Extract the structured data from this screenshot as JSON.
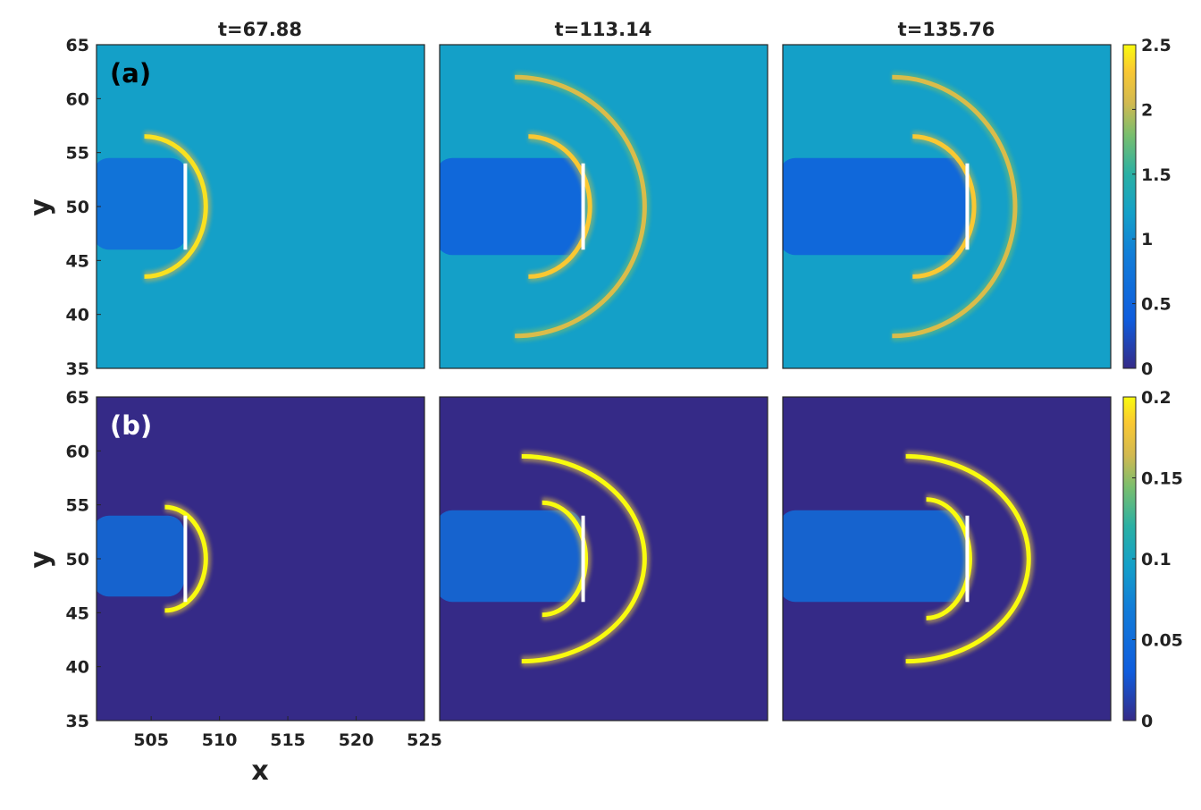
{
  "chart_data": [
    {
      "type": "heatmap",
      "row_label": "(a)",
      "xlabel": "",
      "ylabel": "y",
      "xlim": [
        501,
        525
      ],
      "ylim": [
        35,
        65
      ],
      "yticks": [
        35,
        40,
        45,
        50,
        55,
        60,
        65
      ],
      "panel_titles": [
        "t=67.88",
        "t=113.14",
        "t=135.76"
      ],
      "colorbar": {
        "min": 0,
        "max": 2.5,
        "ticks": [
          "0",
          "0.5",
          "1",
          "1.5",
          "2",
          "2.5"
        ],
        "tick_values": [
          0,
          0.5,
          1,
          1.5,
          2,
          2.5
        ]
      },
      "background_value": 1.2,
      "panels": [
        {
          "title": "t=67.88",
          "bar": {
            "x": 507.5,
            "y0": 46,
            "y1": 54
          },
          "fronts": [
            {
              "xc": 504.5,
              "a": 4.5,
              "b": 6.5,
              "value": 2.4
            }
          ],
          "cavity": {
            "x0": 501,
            "x1": 507.6,
            "y0": 46,
            "y1": 54.5,
            "value": 0.6
          }
        },
        {
          "title": "t=113.14",
          "bar": {
            "x": 511.5,
            "y0": 46,
            "y1": 54
          },
          "fronts": [
            {
              "xc": 507.5,
              "a": 4.5,
              "b": 6.5,
              "value": 2.3
            },
            {
              "xc": 506.5,
              "a": 9.5,
              "b": 12.0,
              "value": 2.1
            }
          ],
          "cavity": {
            "x0": 501,
            "x1": 511.6,
            "y0": 45.5,
            "y1": 54.5,
            "value": 0.4
          }
        },
        {
          "title": "t=135.76",
          "bar": {
            "x": 514.5,
            "y0": 46,
            "y1": 54
          },
          "fronts": [
            {
              "xc": 510.5,
              "a": 4.5,
              "b": 6.5,
              "value": 2.3
            },
            {
              "xc": 509.0,
              "a": 9.0,
              "b": 12.0,
              "value": 2.1
            }
          ],
          "cavity": {
            "x0": 501,
            "x1": 514.6,
            "y0": 45.5,
            "y1": 54.5,
            "value": 0.4
          }
        }
      ]
    },
    {
      "type": "heatmap",
      "row_label": "(b)",
      "xlabel": "x",
      "ylabel": "y",
      "xlim": [
        501,
        525
      ],
      "ylim": [
        35,
        65
      ],
      "xticks": [
        505,
        510,
        515,
        520,
        525
      ],
      "yticks": [
        35,
        40,
        45,
        50,
        55,
        60,
        65
      ],
      "colorbar": {
        "min": 0,
        "max": 0.2,
        "ticks": [
          "0",
          "0.05",
          "0.1",
          "0.15",
          "0.2"
        ],
        "tick_values": [
          0,
          0.05,
          0.1,
          0.15,
          0.2
        ]
      },
      "background_value": 0.0,
      "panels": [
        {
          "bar": {
            "x": 507.5,
            "y0": 46,
            "y1": 54
          },
          "fronts": [
            {
              "xc": 506.0,
              "a": 3.0,
              "b": 4.8,
              "value": 0.2
            }
          ],
          "cavity": {
            "x0": 501,
            "x1": 507.4,
            "y0": 46.5,
            "y1": 54.0,
            "value": 0.05
          }
        },
        {
          "bar": {
            "x": 511.5,
            "y0": 46,
            "y1": 54
          },
          "fronts": [
            {
              "xc": 508.5,
              "a": 3.2,
              "b": 5.2,
              "value": 0.2
            },
            {
              "xc": 507.0,
              "a": 9.0,
              "b": 9.5,
              "value": 0.2
            }
          ],
          "cavity": {
            "x0": 501,
            "x1": 511.4,
            "y0": 46.0,
            "y1": 54.5,
            "value": 0.05
          }
        },
        {
          "bar": {
            "x": 514.5,
            "y0": 46,
            "y1": 54
          },
          "fronts": [
            {
              "xc": 511.5,
              "a": 3.2,
              "b": 5.5,
              "value": 0.2
            },
            {
              "xc": 510.0,
              "a": 9.0,
              "b": 9.5,
              "value": 0.2
            }
          ],
          "cavity": {
            "x0": 501,
            "x1": 514.4,
            "y0": 46.0,
            "y1": 54.5,
            "value": 0.05
          }
        }
      ]
    }
  ]
}
